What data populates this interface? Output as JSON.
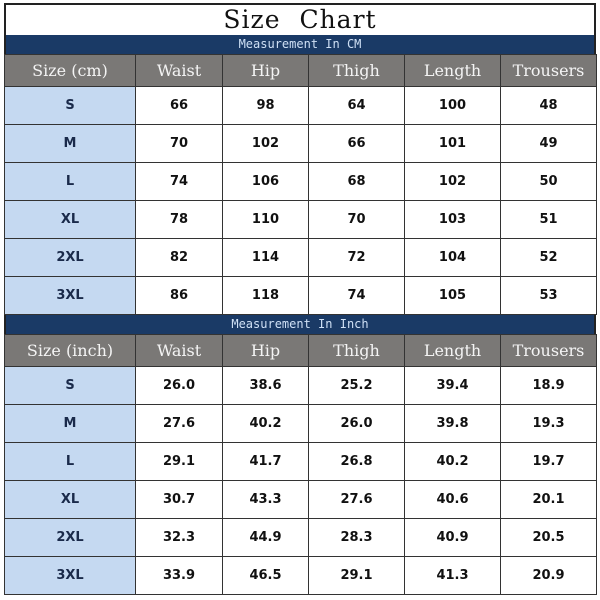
{
  "title": "Size Chart",
  "columns": [
    "Waist",
    "Hip",
    "Thigh",
    "Length",
    "Trousers"
  ],
  "sections": [
    {
      "banner": "Measurement In CM",
      "size_header": "Size (cm)",
      "rows": [
        {
          "size": "S",
          "values": [
            "66",
            "98",
            "64",
            "100",
            "48"
          ]
        },
        {
          "size": "M",
          "values": [
            "70",
            "102",
            "66",
            "101",
            "49"
          ]
        },
        {
          "size": "L",
          "values": [
            "74",
            "106",
            "68",
            "102",
            "50"
          ]
        },
        {
          "size": "XL",
          "values": [
            "78",
            "110",
            "70",
            "103",
            "51"
          ]
        },
        {
          "size": "2XL",
          "values": [
            "82",
            "114",
            "72",
            "104",
            "52"
          ]
        },
        {
          "size": "3XL",
          "values": [
            "86",
            "118",
            "74",
            "105",
            "53"
          ]
        }
      ]
    },
    {
      "banner": "Measurement In Inch",
      "size_header": "Size (inch)",
      "rows": [
        {
          "size": "S",
          "values": [
            "26.0",
            "38.6",
            "25.2",
            "39.4",
            "18.9"
          ]
        },
        {
          "size": "M",
          "values": [
            "27.6",
            "40.2",
            "26.0",
            "39.8",
            "19.3"
          ]
        },
        {
          "size": "L",
          "values": [
            "29.1",
            "41.7",
            "26.8",
            "40.2",
            "19.7"
          ]
        },
        {
          "size": "XL",
          "values": [
            "30.7",
            "43.3",
            "27.6",
            "40.6",
            "20.1"
          ]
        },
        {
          "size": "2XL",
          "values": [
            "32.3",
            "44.9",
            "28.3",
            "40.9",
            "20.5"
          ]
        },
        {
          "size": "3XL",
          "values": [
            "33.9",
            "46.5",
            "29.1",
            "41.3",
            "20.9"
          ]
        }
      ]
    }
  ],
  "colors": {
    "banner": "#1a3a66",
    "header": "#7a7876",
    "size_cell": "#c5d9f1"
  }
}
